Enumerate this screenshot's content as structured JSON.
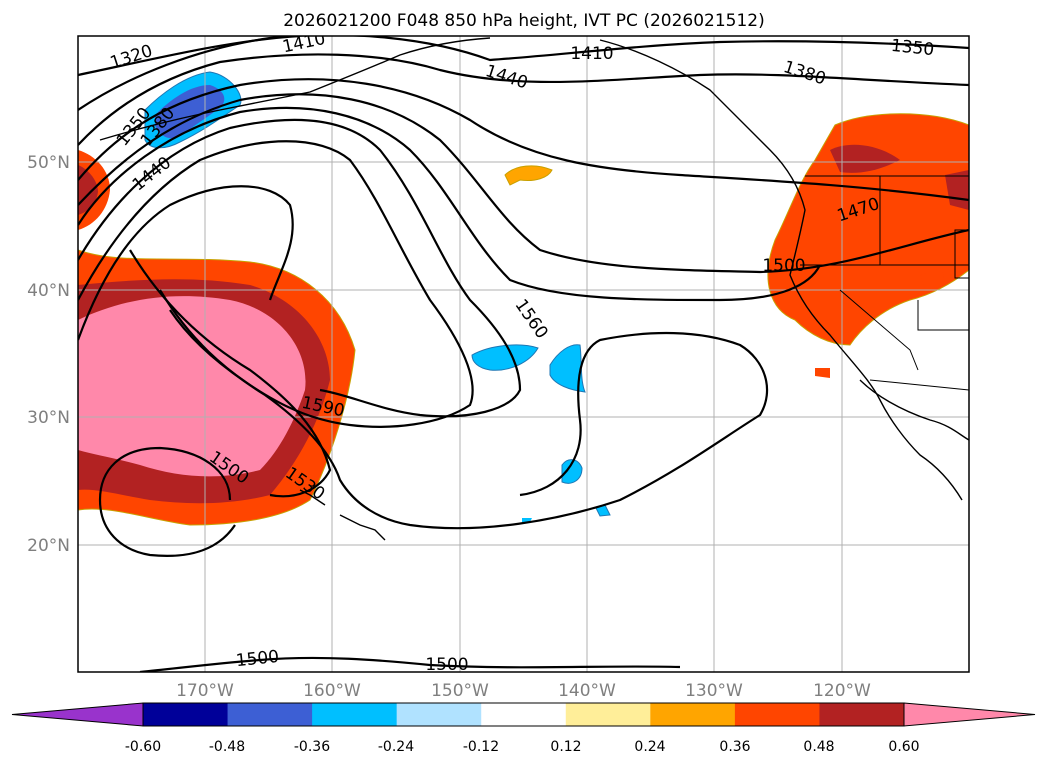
{
  "title": "2026021200 F048 850 hPa height, IVT PC (2026021512)",
  "map": {
    "lat_labels": [
      "50°N",
      "40°N",
      "30°N",
      "20°N"
    ],
    "lon_labels": [
      "170°W",
      "160°W",
      "150°W",
      "140°W",
      "130°W",
      "120°W"
    ],
    "contour_labels": [
      "1320",
      "1410",
      "1350",
      "1380",
      "1440",
      "1410",
      "1350",
      "1380",
      "1440",
      "1470",
      "1500",
      "1560",
      "1590",
      "1500",
      "1530",
      "1500",
      "1500"
    ]
  },
  "colorbar": {
    "colors": [
      "#9933cc",
      "#000099",
      "#3d5fd4",
      "#00bfff",
      "#b0e2ff",
      "#ffffff",
      "#ffee99",
      "#ffa500",
      "#ff4500",
      "#b22222",
      "#ff88aa"
    ],
    "tick_labels": [
      "-0.60",
      "-0.48",
      "-0.36",
      "-0.24",
      "-0.12",
      "0.12",
      "0.24",
      "0.36",
      "0.48",
      "0.60"
    ]
  }
}
